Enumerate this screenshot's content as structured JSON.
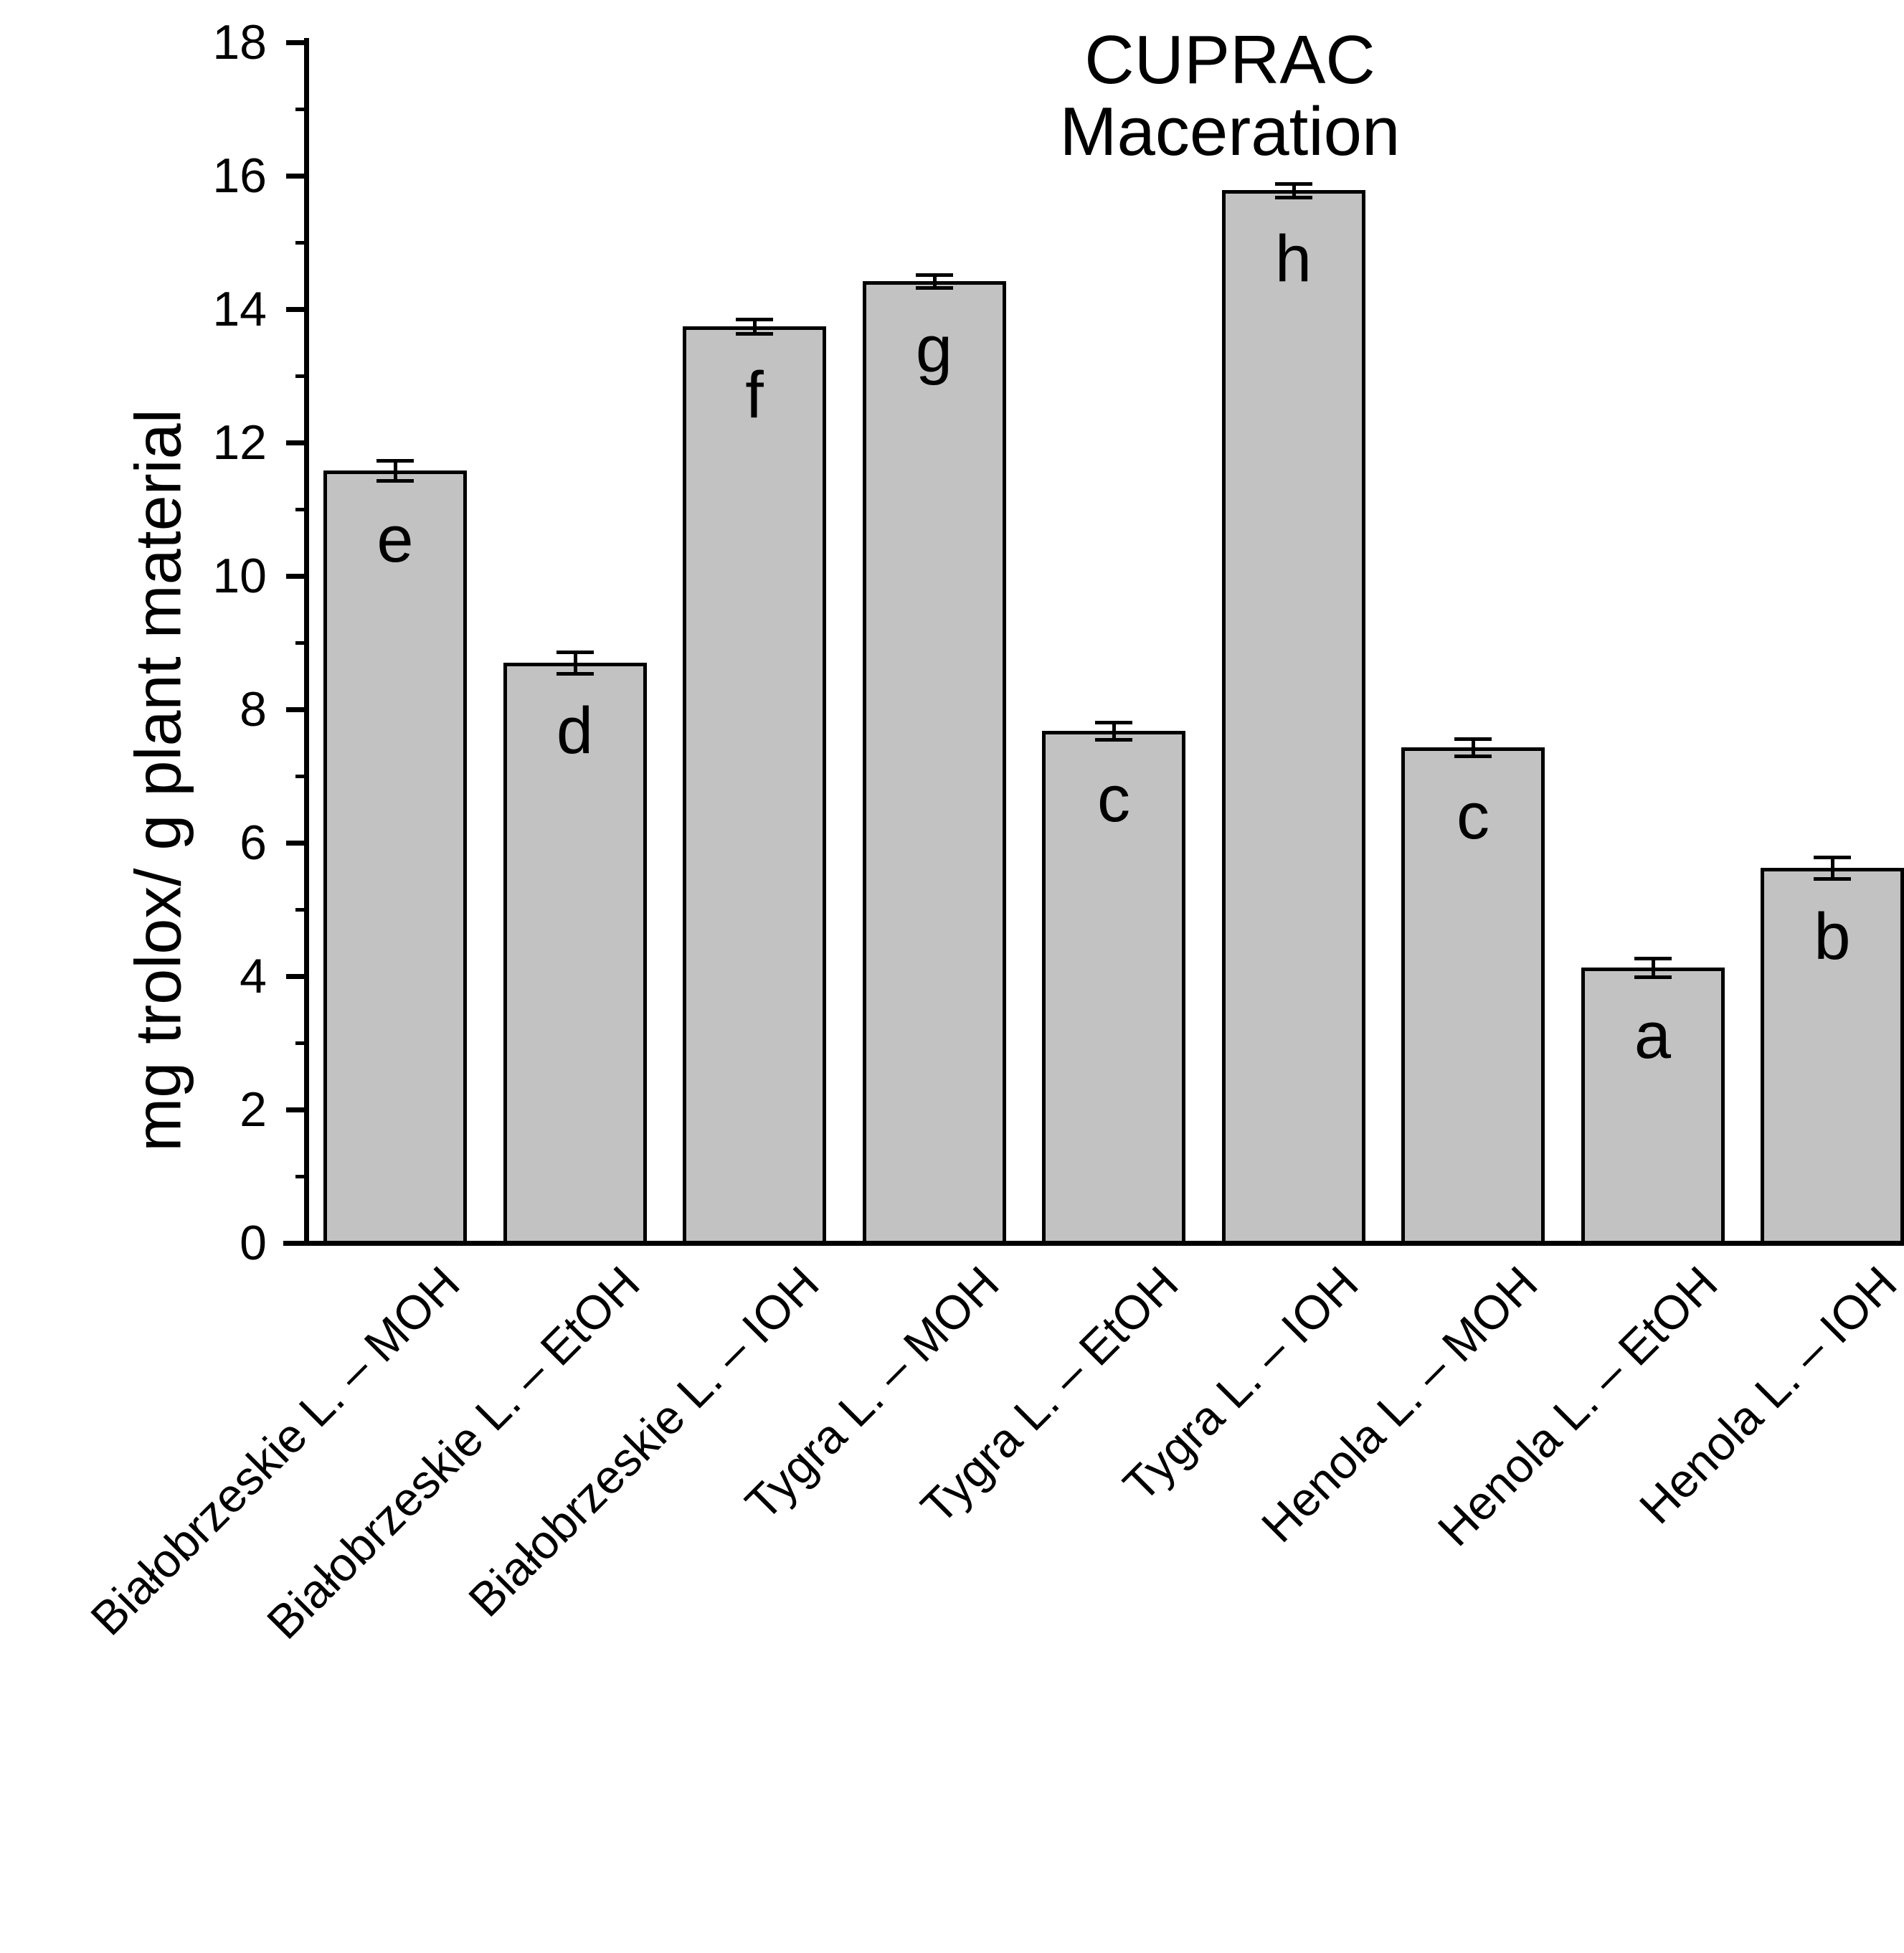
{
  "chart_data": {
    "type": "bar",
    "title": "CUPRAC",
    "subtitle": "Maceration",
    "ylabel": "mg trolox/ g plant material",
    "xlabel": "",
    "ylim": [
      0,
      18
    ],
    "yticks": [
      0,
      2,
      4,
      6,
      8,
      10,
      12,
      14,
      16,
      18
    ],
    "minor_ytick_step": 1,
    "grid": false,
    "legend": false,
    "categories": [
      "Białobrzeskie L. – MOH",
      "Białobrzeskie L. – EtOH",
      "Białobrzeskie L. – IOH",
      "Tygra L. – MOH",
      "Tygra L. – EtOH",
      "Tygra L. – IOH",
      "Henola L. – MOH",
      "Henola L. – EtOH",
      "Henola L. – IOH"
    ],
    "values": [
      11.58,
      8.7,
      13.74,
      14.42,
      7.68,
      15.78,
      7.43,
      4.13,
      5.62
    ],
    "errors": [
      0.15,
      0.16,
      0.11,
      0.1,
      0.13,
      0.1,
      0.13,
      0.14,
      0.16
    ],
    "bar_labels": [
      "e",
      "d",
      "f",
      "g",
      "c",
      "h",
      "c",
      "a",
      "b"
    ],
    "colors": {
      "bar_fill": "#c2c2c2",
      "bar_edge": "#000000",
      "axis": "#000000",
      "text": "#000000",
      "background": "#ffffff"
    }
  }
}
